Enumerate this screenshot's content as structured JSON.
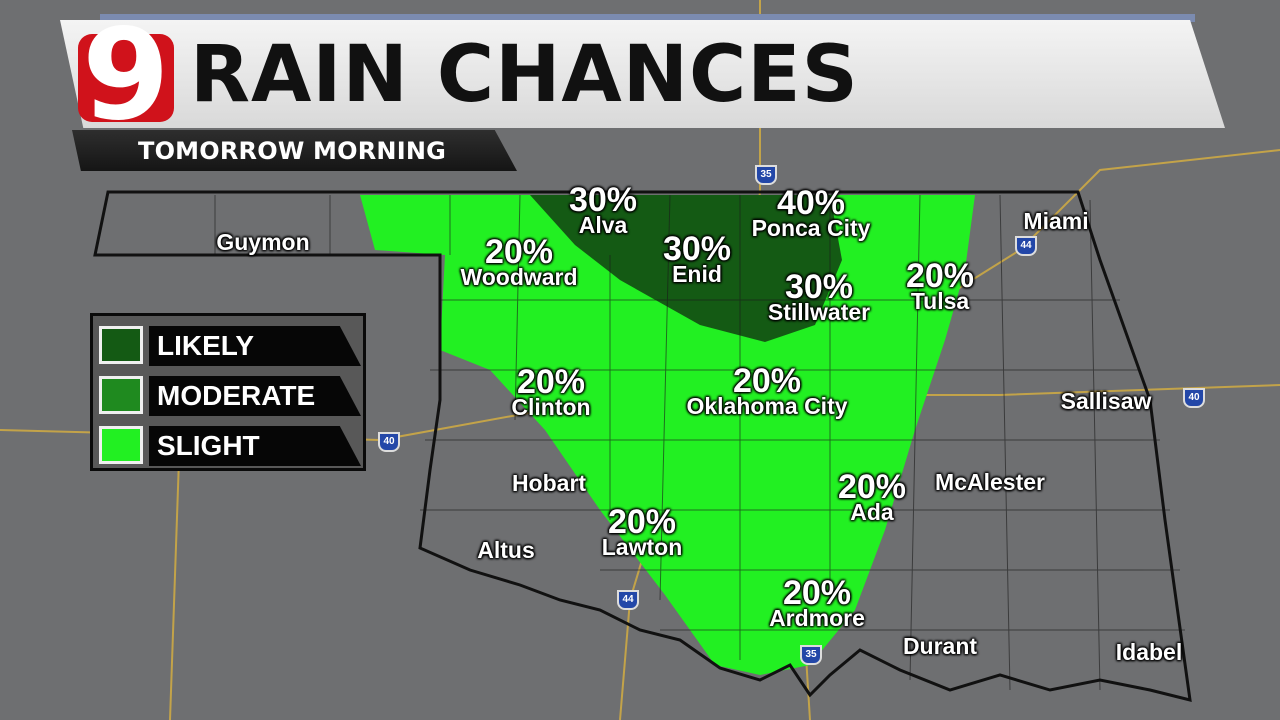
{
  "header": {
    "logo_text": "9",
    "title": "RAIN CHANCES",
    "subtitle": "TOMORROW MORNING"
  },
  "legend": [
    {
      "label": "LIKELY",
      "color": "#145a14"
    },
    {
      "label": "MODERATE",
      "color": "#1f8a1f"
    },
    {
      "label": "SLIGHT",
      "color": "#22f022"
    }
  ],
  "colors": {
    "background": "#6e6f71",
    "state_border": "#111111",
    "roads": "#d8b040",
    "slight": "#22f022",
    "likely": "#145a14"
  },
  "cities": [
    {
      "name": "Guymon",
      "percent": ""
    },
    {
      "name": "Alva",
      "percent": "30%"
    },
    {
      "name": "Ponca City",
      "percent": "40%"
    },
    {
      "name": "Woodward",
      "percent": "20%"
    },
    {
      "name": "Enid",
      "percent": "30%"
    },
    {
      "name": "Stillwater",
      "percent": "30%"
    },
    {
      "name": "Tulsa",
      "percent": "20%"
    },
    {
      "name": "Miami",
      "percent": ""
    },
    {
      "name": "Clinton",
      "percent": "20%"
    },
    {
      "name": "Oklahoma City",
      "percent": "20%"
    },
    {
      "name": "Sallisaw",
      "percent": ""
    },
    {
      "name": "Hobart",
      "percent": ""
    },
    {
      "name": "Ada",
      "percent": "20%"
    },
    {
      "name": "McAlester",
      "percent": ""
    },
    {
      "name": "Lawton",
      "percent": "20%"
    },
    {
      "name": "Altus",
      "percent": ""
    },
    {
      "name": "Ardmore",
      "percent": "20%"
    },
    {
      "name": "Durant",
      "percent": ""
    },
    {
      "name": "Idabel",
      "percent": ""
    }
  ],
  "highways": [
    "35",
    "44",
    "40",
    "40",
    "44",
    "35"
  ]
}
